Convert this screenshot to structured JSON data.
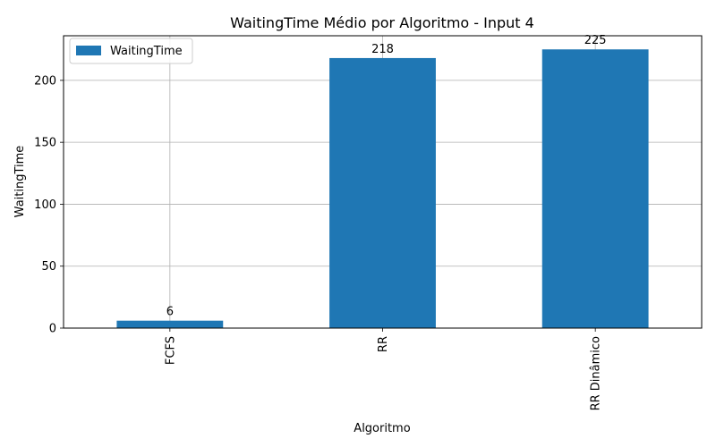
{
  "chart_data": {
    "type": "bar",
    "title": "WaitingTime Médio por Algoritmo - Input 4",
    "xlabel": "Algoritmo",
    "ylabel": "WaitingTime",
    "categories": [
      "FCFS",
      "RR",
      "RR Dinâmico"
    ],
    "series": [
      {
        "name": "WaitingTime",
        "values": [
          6,
          218,
          225
        ]
      }
    ],
    "data_labels": [
      "6",
      "218",
      "225"
    ],
    "y_ticks": [
      0,
      50,
      100,
      150,
      200
    ],
    "ylim": [
      0,
      236
    ],
    "grid": true,
    "legend_position": "top-left",
    "x_tick_rotation": "vertical",
    "colors": {
      "bar": "#1f77b4",
      "grid": "#b0b0b0",
      "axis": "#000000"
    }
  }
}
